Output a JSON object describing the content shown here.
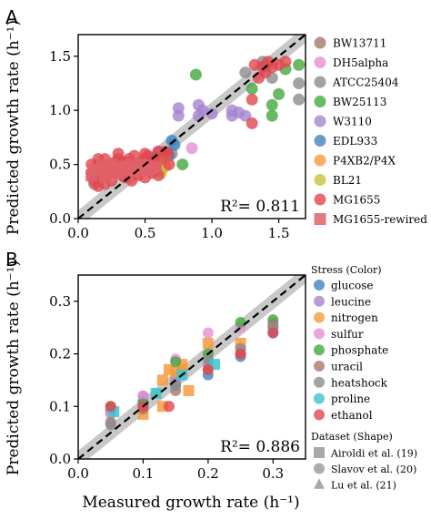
{
  "figure": {
    "panels": [
      "A",
      "B"
    ],
    "ylabel": "Predicted growth rate (h⁻¹)",
    "xlabel": "Measured growth rate (h⁻¹)"
  },
  "chart_data": [
    {
      "panel": "A",
      "type": "scatter",
      "xlim": [
        0.0,
        1.7
      ],
      "ylim": [
        0.0,
        1.7
      ],
      "xticks": [
        0.0,
        0.5,
        1.0,
        1.5
      ],
      "yticks": [
        0.0,
        0.5,
        1.0,
        1.5
      ],
      "xtick_labels": [
        "0.0",
        "0.5",
        "1.0",
        "1.5"
      ],
      "ytick_labels": [
        "0.0",
        "0.5",
        "1.0",
        "1.5"
      ],
      "annotation": "R²= 0.811",
      "identity_line": true,
      "legend_position": "outside-right",
      "series": [
        {
          "name": "BW13711",
          "color": "#a8776a",
          "marker": "circle",
          "points": [
            [
              0.13,
              0.38
            ],
            [
              0.2,
              0.42
            ],
            [
              0.3,
              0.45
            ],
            [
              0.42,
              0.48
            ],
            [
              0.55,
              0.5
            ],
            [
              0.12,
              0.32
            ],
            [
              0.5,
              0.55
            ]
          ]
        },
        {
          "name": "DH5alpha",
          "color": "#e58fd3",
          "marker": "circle",
          "points": [
            [
              0.6,
              0.52
            ],
            [
              0.85,
              0.65
            ],
            [
              0.1,
              0.38
            ],
            [
              0.35,
              0.45
            ]
          ]
        },
        {
          "name": "ATCC25404",
          "color": "#8c8c8c",
          "marker": "circle",
          "points": [
            [
              1.25,
              1.35
            ],
            [
              1.4,
              1.42
            ],
            [
              1.45,
              1.3
            ],
            [
              1.65,
              1.1
            ],
            [
              1.65,
              1.25
            ],
            [
              1.38,
              1.45
            ],
            [
              0.7,
              0.6
            ]
          ]
        },
        {
          "name": "BW25113",
          "color": "#44a83e",
          "marker": "circle",
          "points": [
            [
              0.88,
              1.33
            ],
            [
              1.3,
              1.2
            ],
            [
              1.45,
              1.05
            ],
            [
              1.5,
              1.15
            ],
            [
              1.55,
              1.38
            ],
            [
              1.65,
              1.42
            ],
            [
              0.78,
              0.5
            ],
            [
              1.45,
              0.95
            ]
          ]
        },
        {
          "name": "W3110",
          "color": "#a584d0",
          "marker": "circle",
          "points": [
            [
              0.75,
              1.02
            ],
            [
              0.75,
              0.95
            ],
            [
              0.9,
              1.05
            ],
            [
              0.9,
              0.95
            ],
            [
              0.93,
              1.0
            ],
            [
              1.0,
              0.97
            ],
            [
              1.15,
              1.0
            ],
            [
              1.15,
              0.95
            ],
            [
              1.2,
              0.98
            ],
            [
              1.25,
              0.95
            ],
            [
              0.6,
              0.62
            ],
            [
              0.65,
              0.58
            ]
          ]
        },
        {
          "name": "EDL933",
          "color": "#3f85bf",
          "marker": "circle",
          "points": [
            [
              0.7,
              0.72
            ],
            [
              0.72,
              0.68
            ],
            [
              0.68,
              0.58
            ]
          ]
        },
        {
          "name": "P4XB2/P4X",
          "color": "#f79a3c",
          "marker": "circle",
          "points": [
            [
              0.62,
              0.45
            ],
            [
              0.6,
              0.52
            ],
            [
              0.65,
              0.48
            ],
            [
              0.2,
              0.4
            ]
          ]
        },
        {
          "name": "BL21",
          "color": "#c9c23a",
          "marker": "circle",
          "points": [
            [
              0.65,
              0.55
            ],
            [
              0.6,
              0.48
            ],
            [
              0.62,
              0.42
            ]
          ]
        },
        {
          "name": "MG1655",
          "color": "#e0474f",
          "marker": "circle",
          "points": [
            [
              0.1,
              0.42
            ],
            [
              0.15,
              0.5
            ],
            [
              0.2,
              0.55
            ],
            [
              0.25,
              0.45
            ],
            [
              0.3,
              0.5
            ],
            [
              0.35,
              0.52
            ],
            [
              0.4,
              0.48
            ],
            [
              0.45,
              0.5
            ],
            [
              0.5,
              0.55
            ],
            [
              0.55,
              0.5
            ],
            [
              0.6,
              0.62
            ],
            [
              0.12,
              0.35
            ],
            [
              0.18,
              0.4
            ],
            [
              0.22,
              0.48
            ],
            [
              0.28,
              0.42
            ],
            [
              0.33,
              0.4
            ],
            [
              0.38,
              0.55
            ],
            [
              0.42,
              0.58
            ],
            [
              0.48,
              0.45
            ],
            [
              0.52,
              0.58
            ],
            [
              0.58,
              0.45
            ],
            [
              0.62,
              0.55
            ],
            [
              0.15,
              0.3
            ],
            [
              0.25,
              0.35
            ],
            [
              0.35,
              0.38
            ],
            [
              0.45,
              0.4
            ],
            [
              0.55,
              0.42
            ],
            [
              0.1,
              0.5
            ],
            [
              0.2,
              0.32
            ],
            [
              0.3,
              0.55
            ],
            [
              0.4,
              0.35
            ],
            [
              0.5,
              0.38
            ],
            [
              0.6,
              0.4
            ],
            [
              0.65,
              0.62
            ],
            [
              0.68,
              0.5
            ],
            [
              0.5,
              0.6
            ],
            [
              0.3,
              0.6
            ],
            [
              0.15,
              0.55
            ],
            [
              0.27,
              0.52
            ],
            [
              0.37,
              0.47
            ],
            [
              0.47,
              0.52
            ],
            [
              0.57,
              0.56
            ],
            [
              0.67,
              0.6
            ],
            [
              1.32,
              1.42
            ],
            [
              1.38,
              1.4
            ],
            [
              1.4,
              1.35
            ],
            [
              1.42,
              1.45
            ],
            [
              1.35,
              1.3
            ],
            [
              1.45,
              1.4
            ],
            [
              1.3,
              1.1
            ],
            [
              1.3,
              0.88
            ],
            [
              1.5,
              1.42
            ],
            [
              1.55,
              1.45
            ]
          ]
        },
        {
          "name": "MG1655-rewired",
          "color": "#e0626a",
          "marker": "square",
          "points": [
            [
              0.1,
              0.4
            ],
            [
              0.15,
              0.45
            ],
            [
              0.2,
              0.38
            ],
            [
              0.25,
              0.5
            ],
            [
              0.3,
              0.42
            ],
            [
              0.35,
              0.46
            ],
            [
              0.4,
              0.5
            ],
            [
              0.45,
              0.44
            ],
            [
              0.5,
              0.48
            ],
            [
              0.55,
              0.46
            ],
            [
              0.12,
              0.45
            ],
            [
              0.18,
              0.5
            ],
            [
              0.22,
              0.42
            ],
            [
              0.28,
              0.46
            ],
            [
              0.32,
              0.48
            ],
            [
              0.38,
              0.44
            ],
            [
              0.42,
              0.46
            ],
            [
              0.48,
              0.5
            ],
            [
              0.52,
              0.44
            ],
            [
              0.58,
              0.48
            ]
          ]
        }
      ]
    },
    {
      "panel": "B",
      "type": "scatter",
      "xlim": [
        0.0,
        0.35
      ],
      "ylim": [
        0.0,
        0.35
      ],
      "xticks": [
        0.0,
        0.1,
        0.2,
        0.3
      ],
      "yticks": [
        0.0,
        0.1,
        0.2,
        0.3
      ],
      "xtick_labels": [
        "0.0",
        "0.1",
        "0.2",
        "0.3"
      ],
      "ytick_labels": [
        "0.0",
        "0.1",
        "0.2",
        "0.3"
      ],
      "annotation": "R²= 0.886",
      "identity_line": true,
      "legend_position": "outside-right",
      "legend_color_title": "Stress (Color)",
      "legend_shape_title": "Dataset (Shape)",
      "shape_legend": [
        {
          "marker": "square",
          "label": "Airoldi et al. (19)"
        },
        {
          "marker": "circle",
          "label": "Slavov et al. (20)"
        },
        {
          "marker": "triangle",
          "label": "Lu et al. (21)"
        }
      ],
      "series": [
        {
          "name": "glucose",
          "color": "#3f85bf",
          "marker": "circle",
          "points": [
            [
              0.05,
              0.09
            ],
            [
              0.1,
              0.11
            ],
            [
              0.15,
              0.14
            ],
            [
              0.2,
              0.16
            ],
            [
              0.25,
              0.195
            ],
            [
              0.3,
              0.24
            ]
          ]
        },
        {
          "name": "leucine",
          "color": "#a584d0",
          "marker": "circle",
          "points": [
            [
              0.05,
              0.095
            ],
            [
              0.1,
              0.12
            ],
            [
              0.15,
              0.15
            ],
            [
              0.2,
              0.18
            ],
            [
              0.25,
              0.21
            ],
            [
              0.3,
              0.25
            ]
          ]
        },
        {
          "name": "nitrogen",
          "color": "#f79a3c",
          "marker": "square",
          "points": [
            [
              0.1,
              0.085
            ],
            [
              0.13,
              0.15
            ],
            [
              0.14,
              0.17
            ],
            [
              0.15,
              0.165
            ],
            [
              0.16,
              0.17
            ],
            [
              0.17,
              0.13
            ],
            [
              0.2,
              0.22
            ],
            [
              0.25,
              0.22
            ],
            [
              0.13,
              0.1
            ],
            [
              0.16,
              0.18
            ]
          ]
        },
        {
          "name": "sulfur",
          "color": "#e58fd3",
          "marker": "circle",
          "points": [
            [
              0.05,
              0.085
            ],
            [
              0.1,
              0.12
            ],
            [
              0.15,
              0.19
            ],
            [
              0.2,
              0.24
            ],
            [
              0.25,
              0.25
            ],
            [
              0.3,
              0.26
            ]
          ]
        },
        {
          "name": "phosphate",
          "color": "#44a83e",
          "marker": "circle",
          "points": [
            [
              0.05,
              0.1
            ],
            [
              0.1,
              0.105
            ],
            [
              0.15,
              0.185
            ],
            [
              0.2,
              0.2
            ],
            [
              0.25,
              0.26
            ],
            [
              0.3,
              0.265
            ]
          ]
        },
        {
          "name": "uracil",
          "color": "#a8776a",
          "marker": "circle",
          "points": [
            [
              0.05,
              0.07
            ],
            [
              0.1,
              0.095
            ],
            [
              0.15,
              0.13
            ],
            [
              0.2,
              0.17
            ],
            [
              0.25,
              0.2
            ],
            [
              0.3,
              0.255
            ]
          ]
        },
        {
          "name": "heatshock",
          "color": "#8c8c8c",
          "marker": "circle",
          "points": [
            [
              0.05,
              0.065
            ],
            [
              0.1,
              0.1
            ],
            [
              0.15,
              0.14
            ],
            [
              0.2,
              0.19
            ],
            [
              0.25,
              0.21
            ],
            [
              0.3,
              0.25
            ]
          ]
        },
        {
          "name": "proline",
          "color": "#3bc4cc",
          "marker": "square",
          "points": [
            [
              0.055,
              0.09
            ],
            [
              0.12,
              0.125
            ],
            [
              0.16,
              0.16
            ],
            [
              0.21,
              0.18
            ]
          ]
        },
        {
          "name": "ethanol",
          "color": "#e0474f",
          "marker": "circle",
          "points": [
            [
              0.05,
              0.1
            ],
            [
              0.1,
              0.1
            ],
            [
              0.14,
              0.1
            ],
            [
              0.2,
              0.17
            ],
            [
              0.25,
              0.2
            ],
            [
              0.3,
              0.24
            ]
          ]
        }
      ]
    }
  ]
}
